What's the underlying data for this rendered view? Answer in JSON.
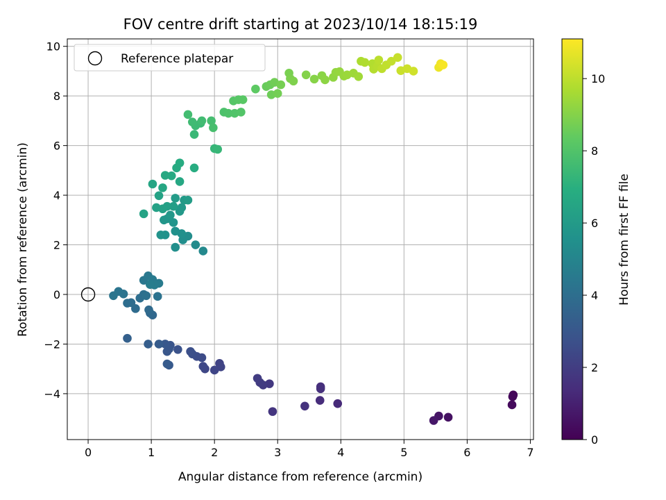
{
  "chart_data": {
    "type": "scatter",
    "title": "FOV centre drift starting at 2023/10/14 18:15:19",
    "xlabel": "Angular distance from reference (arcmin)",
    "ylabel": "Rotation from reference (arcmin)",
    "xlim": [
      -0.33,
      7.05
    ],
    "ylim": [
      -5.85,
      10.3
    ],
    "xticks": [
      0,
      1,
      2,
      3,
      4,
      5,
      6,
      7
    ],
    "yticks": [
      -4,
      -2,
      0,
      2,
      4,
      6,
      8,
      10
    ],
    "grid": true,
    "legend": {
      "placement": "top-left",
      "entries": [
        "Reference platepar"
      ]
    },
    "reference_point": {
      "x": 0,
      "y": 0
    },
    "colorbar": {
      "label": "Hours from first FF file",
      "colormap": "viridis",
      "range": [
        0,
        11.1
      ],
      "ticks": [
        0,
        2,
        4,
        6,
        8,
        10
      ]
    },
    "points": [
      [
        6.73,
        -4.05,
        0.1
      ],
      [
        6.72,
        -4.12,
        0.2
      ],
      [
        6.71,
        -4.45,
        0.3
      ],
      [
        5.7,
        -4.95,
        0.5
      ],
      [
        5.55,
        -4.9,
        0.6
      ],
      [
        5.47,
        -5.08,
        0.7
      ],
      [
        3.95,
        -4.4,
        1.3
      ],
      [
        3.67,
        -4.27,
        1.4
      ],
      [
        3.68,
        -3.72,
        1.45
      ],
      [
        3.68,
        -3.8,
        1.5
      ],
      [
        3.43,
        -4.5,
        1.6
      ],
      [
        2.92,
        -4.72,
        1.7
      ],
      [
        2.87,
        -3.6,
        1.8
      ],
      [
        2.77,
        -3.65,
        1.9
      ],
      [
        2.72,
        -3.55,
        1.95
      ],
      [
        2.68,
        -3.38,
        2.0
      ],
      [
        2.08,
        -2.78,
        2.2
      ],
      [
        2.1,
        -2.92,
        2.25
      ],
      [
        2.0,
        -3.05,
        2.3
      ],
      [
        1.85,
        -3.0,
        2.35
      ],
      [
        1.82,
        -2.9,
        2.4
      ],
      [
        1.8,
        -2.55,
        2.5
      ],
      [
        1.72,
        -2.5,
        2.6
      ],
      [
        1.65,
        -2.4,
        2.65
      ],
      [
        1.62,
        -2.3,
        2.7
      ],
      [
        1.42,
        -2.22,
        2.8
      ],
      [
        1.3,
        -2.05,
        2.9
      ],
      [
        1.28,
        -2.2,
        2.95
      ],
      [
        1.25,
        -2.3,
        3.0
      ],
      [
        1.22,
        -2.0,
        3.05
      ],
      [
        1.28,
        -2.85,
        3.1
      ],
      [
        1.25,
        -2.8,
        3.15
      ],
      [
        1.12,
        -2.0,
        3.2
      ],
      [
        0.95,
        -2.0,
        3.3
      ],
      [
        0.62,
        -1.77,
        3.4
      ],
      [
        1.02,
        -0.83,
        3.7
      ],
      [
        0.98,
        -0.75,
        3.75
      ],
      [
        0.96,
        -0.62,
        3.8
      ],
      [
        0.75,
        -0.57,
        3.85
      ],
      [
        0.68,
        -0.33,
        3.9
      ],
      [
        0.62,
        -0.35,
        3.95
      ],
      [
        0.82,
        -0.15,
        4.0
      ],
      [
        0.88,
        0.0,
        4.05
      ],
      [
        0.92,
        -0.05,
        4.1
      ],
      [
        1.1,
        -0.08,
        4.15
      ],
      [
        0.56,
        0.02,
        4.2
      ],
      [
        0.48,
        0.12,
        4.25
      ],
      [
        0.4,
        -0.05,
        4.3
      ],
      [
        0.88,
        0.57,
        4.4
      ],
      [
        0.95,
        0.75,
        4.45
      ],
      [
        1.02,
        0.6,
        4.5
      ],
      [
        1.12,
        0.45,
        4.55
      ],
      [
        1.05,
        0.38,
        4.6
      ],
      [
        0.98,
        0.4,
        4.65
      ],
      [
        1.82,
        1.75,
        5.2
      ],
      [
        1.7,
        2.0,
        5.3
      ],
      [
        1.58,
        2.35,
        5.35
      ],
      [
        1.5,
        2.2,
        5.4
      ],
      [
        1.38,
        1.9,
        5.45
      ],
      [
        1.48,
        2.45,
        5.5
      ],
      [
        1.38,
        2.55,
        5.55
      ],
      [
        1.22,
        2.4,
        5.6
      ],
      [
        1.15,
        2.4,
        5.65
      ],
      [
        1.35,
        2.9,
        5.7
      ],
      [
        1.25,
        3.05,
        5.75
      ],
      [
        1.2,
        3.0,
        5.8
      ],
      [
        1.3,
        3.2,
        5.85
      ],
      [
        1.45,
        3.35,
        5.9
      ],
      [
        1.48,
        3.5,
        5.95
      ],
      [
        1.52,
        3.8,
        6.0
      ],
      [
        1.38,
        3.88,
        6.05
      ],
      [
        1.58,
        3.8,
        6.1
      ],
      [
        1.35,
        3.55,
        6.15
      ],
      [
        1.25,
        3.55,
        6.2
      ],
      [
        1.18,
        3.45,
        6.25
      ],
      [
        1.08,
        3.5,
        6.3
      ],
      [
        1.12,
        3.98,
        6.35
      ],
      [
        0.88,
        3.25,
        6.4
      ],
      [
        1.02,
        4.45,
        6.5
      ],
      [
        1.18,
        4.3,
        6.55
      ],
      [
        1.45,
        4.55,
        6.6
      ],
      [
        1.22,
        4.8,
        6.65
      ],
      [
        1.32,
        4.78,
        6.7
      ],
      [
        1.4,
        5.1,
        6.75
      ],
      [
        1.45,
        5.3,
        6.8
      ],
      [
        1.68,
        5.1,
        6.85
      ],
      [
        2.0,
        5.88,
        7.3
      ],
      [
        2.05,
        5.85,
        7.35
      ],
      [
        1.68,
        6.45,
        7.4
      ],
      [
        1.78,
        6.9,
        7.45
      ],
      [
        1.7,
        6.8,
        7.5
      ],
      [
        1.65,
        6.95,
        7.55
      ],
      [
        1.8,
        7.0,
        7.6
      ],
      [
        1.58,
        7.25,
        7.65
      ],
      [
        1.95,
        7.0,
        7.7
      ],
      [
        1.98,
        6.72,
        7.75
      ],
      [
        2.15,
        7.35,
        7.9
      ],
      [
        2.22,
        7.3,
        7.95
      ],
      [
        2.32,
        7.3,
        8.0
      ],
      [
        2.42,
        7.35,
        8.05
      ],
      [
        2.3,
        7.8,
        8.1
      ],
      [
        2.38,
        7.85,
        8.15
      ],
      [
        2.45,
        7.85,
        8.2
      ],
      [
        2.65,
        8.28,
        8.3
      ],
      [
        2.82,
        8.38,
        8.5
      ],
      [
        2.88,
        8.45,
        8.55
      ],
      [
        2.9,
        8.05,
        8.6
      ],
      [
        2.95,
        8.55,
        8.65
      ],
      [
        3.0,
        8.1,
        8.7
      ],
      [
        3.05,
        8.45,
        8.75
      ],
      [
        3.18,
        8.92,
        8.8
      ],
      [
        3.2,
        8.7,
        8.85
      ],
      [
        3.25,
        8.6,
        8.9
      ],
      [
        3.45,
        8.85,
        9.0
      ],
      [
        3.58,
        8.68,
        9.05
      ],
      [
        3.7,
        8.82,
        9.1
      ],
      [
        3.75,
        8.65,
        9.15
      ],
      [
        3.88,
        8.75,
        9.2
      ],
      [
        3.92,
        8.95,
        9.25
      ],
      [
        3.98,
        8.98,
        9.3
      ],
      [
        4.05,
        8.8,
        9.35
      ],
      [
        4.1,
        8.85,
        9.4
      ],
      [
        4.2,
        8.92,
        9.45
      ],
      [
        4.28,
        8.78,
        9.5
      ],
      [
        4.32,
        9.4,
        9.7
      ],
      [
        4.38,
        9.35,
        9.75
      ],
      [
        4.5,
        9.3,
        9.8
      ],
      [
        4.52,
        9.08,
        9.85
      ],
      [
        4.58,
        9.2,
        9.9
      ],
      [
        4.6,
        9.45,
        9.95
      ],
      [
        4.65,
        9.1,
        10.0
      ],
      [
        4.72,
        9.25,
        10.05
      ],
      [
        4.8,
        9.4,
        10.1
      ],
      [
        4.9,
        9.55,
        10.15
      ],
      [
        4.95,
        9.02,
        10.2
      ],
      [
        5.05,
        9.1,
        10.25
      ],
      [
        5.15,
        9.0,
        10.3
      ],
      [
        5.55,
        9.15,
        10.8
      ],
      [
        5.58,
        9.3,
        10.9
      ],
      [
        5.62,
        9.25,
        11.0
      ]
    ]
  }
}
